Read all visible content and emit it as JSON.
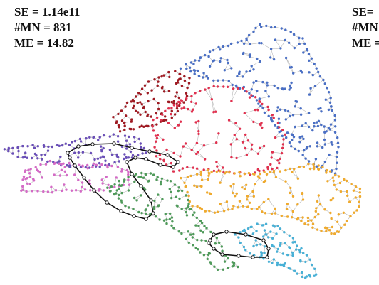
{
  "stats_left": {
    "se": "SE = 1.14e11",
    "mn": "#MN = 831",
    "me": "ME = 14.82"
  },
  "stats_right": {
    "se": "SE=",
    "mn": "#MN",
    "me": "ME ="
  },
  "clusters": [
    {
      "name": "blue",
      "color": "#4a6fc4"
    },
    {
      "name": "crimson",
      "color": "#e0314f"
    },
    {
      "name": "darkred",
      "color": "#9e1a22"
    },
    {
      "name": "orange",
      "color": "#efaa2e"
    },
    {
      "name": "purple",
      "color": "#6a4fb7"
    },
    {
      "name": "pink",
      "color": "#d46ac6"
    },
    {
      "name": "green",
      "color": "#4f9a5a"
    },
    {
      "name": "cyan",
      "color": "#48b0d6"
    }
  ],
  "edge_color": "#b7b7b7",
  "highlight_color": "#111111"
}
